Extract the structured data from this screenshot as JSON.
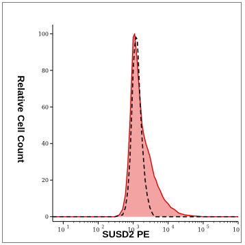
{
  "chart_data": {
    "type": "area",
    "title": "",
    "xlabel": "SUSD2 PE",
    "ylabel": "Relative Cell Count",
    "xscale": "log",
    "xlim": [
      5,
      1000000
    ],
    "ylim": [
      -2,
      105
    ],
    "xticks": [
      {
        "value": 10,
        "base": "10",
        "exp": "1"
      },
      {
        "value": 100,
        "base": "10",
        "exp": "2"
      },
      {
        "value": 1000,
        "base": "10",
        "exp": "3"
      },
      {
        "value": 10000,
        "base": "10",
        "exp": "4"
      },
      {
        "value": 100000,
        "base": "10",
        "exp": "5"
      },
      {
        "value": 1000000,
        "base": "10",
        "exp": "6"
      }
    ],
    "yticks": [
      0,
      20,
      40,
      60,
      80,
      100
    ],
    "grid": false,
    "colors": {
      "filled_fill": "#f4a3a3",
      "filled_line": "#e00000",
      "dashed_line": "#000000"
    },
    "series": [
      {
        "style": "filled-red",
        "x": [
          5,
          100,
          300,
          400,
          500,
          600,
          700,
          800,
          900,
          1000,
          1100,
          1200,
          1300,
          1400,
          1600,
          1800,
          2000,
          2300,
          2600,
          3000,
          3500,
          4000,
          4500,
          5000,
          6000,
          7000,
          8000,
          10000,
          12000,
          15000,
          20000,
          30000,
          50000,
          100000,
          1000000
        ],
        "y": [
          0,
          0,
          0,
          1,
          4,
          12,
          28,
          50,
          75,
          98,
          100,
          92,
          85,
          76,
          62,
          50,
          45,
          40,
          37,
          33,
          27,
          22,
          20,
          17,
          14,
          11,
          9,
          7,
          5,
          4,
          2,
          1,
          0.5,
          0,
          0
        ]
      },
      {
        "style": "dashed-black",
        "x": [
          5,
          300,
          500,
          600,
          700,
          800,
          900,
          1000,
          1100,
          1200,
          1300,
          1400,
          1500,
          1600,
          1800,
          2000,
          2200,
          2500,
          3000,
          3500,
          4000,
          1000000
        ],
        "y": [
          0,
          0,
          1,
          5,
          14,
          30,
          55,
          80,
          93,
          98,
          97,
          86,
          72,
          60,
          42,
          30,
          20,
          12,
          5,
          2,
          0,
          0
        ]
      }
    ]
  }
}
